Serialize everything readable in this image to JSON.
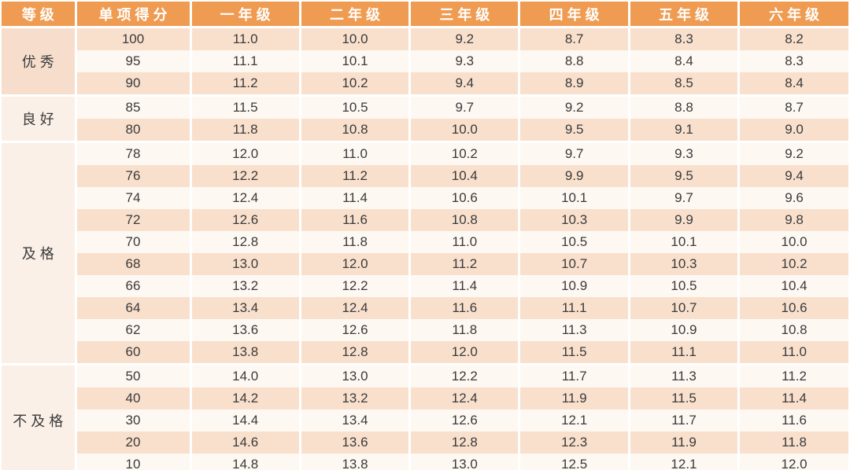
{
  "colors": {
    "header_bg": "#EF9B51",
    "header_text": "#FFFFFF",
    "row_peach": "#F9E0CD",
    "row_cream": "#FEF8F3",
    "group_excellent_bg": "#F7DECC",
    "group_other_bg": "#FBF0E8",
    "cell_text": "#3A3A3A",
    "grid_line": "#FFFFFF"
  },
  "chart_data": {
    "type": "table",
    "columns": [
      "等级",
      "单项得分",
      "一年级",
      "二年级",
      "三年级",
      "四年级",
      "五年级",
      "六年级"
    ],
    "groups": [
      {
        "label": "优秀",
        "rows": [
          {
            "score": "100",
            "values": [
              "11.0",
              "10.0",
              "9.2",
              "8.7",
              "8.3",
              "8.2"
            ]
          },
          {
            "score": "95",
            "values": [
              "11.1",
              "10.1",
              "9.3",
              "8.8",
              "8.4",
              "8.3"
            ]
          },
          {
            "score": "90",
            "values": [
              "11.2",
              "10.2",
              "9.4",
              "8.9",
              "8.5",
              "8.4"
            ]
          }
        ]
      },
      {
        "label": "良好",
        "rows": [
          {
            "score": "85",
            "values": [
              "11.5",
              "10.5",
              "9.7",
              "9.2",
              "8.8",
              "8.7"
            ]
          },
          {
            "score": "80",
            "values": [
              "11.8",
              "10.8",
              "10.0",
              "9.5",
              "9.1",
              "9.0"
            ]
          }
        ]
      },
      {
        "label": "及格",
        "rows": [
          {
            "score": "78",
            "values": [
              "12.0",
              "11.0",
              "10.2",
              "9.7",
              "9.3",
              "9.2"
            ]
          },
          {
            "score": "76",
            "values": [
              "12.2",
              "11.2",
              "10.4",
              "9.9",
              "9.5",
              "9.4"
            ]
          },
          {
            "score": "74",
            "values": [
              "12.4",
              "11.4",
              "10.6",
              "10.1",
              "9.7",
              "9.6"
            ]
          },
          {
            "score": "72",
            "values": [
              "12.6",
              "11.6",
              "10.8",
              "10.3",
              "9.9",
              "9.8"
            ]
          },
          {
            "score": "70",
            "values": [
              "12.8",
              "11.8",
              "11.0",
              "10.5",
              "10.1",
              "10.0"
            ]
          },
          {
            "score": "68",
            "values": [
              "13.0",
              "12.0",
              "11.2",
              "10.7",
              "10.3",
              "10.2"
            ]
          },
          {
            "score": "66",
            "values": [
              "13.2",
              "12.2",
              "11.4",
              "10.9",
              "10.5",
              "10.4"
            ]
          },
          {
            "score": "64",
            "values": [
              "13.4",
              "12.4",
              "11.6",
              "11.1",
              "10.7",
              "10.6"
            ]
          },
          {
            "score": "62",
            "values": [
              "13.6",
              "12.6",
              "11.8",
              "11.3",
              "10.9",
              "10.8"
            ]
          },
          {
            "score": "60",
            "values": [
              "13.8",
              "12.8",
              "12.0",
              "11.5",
              "11.1",
              "11.0"
            ]
          }
        ]
      },
      {
        "label": "不及格",
        "rows": [
          {
            "score": "50",
            "values": [
              "14.0",
              "13.0",
              "12.2",
              "11.7",
              "11.3",
              "11.2"
            ]
          },
          {
            "score": "40",
            "values": [
              "14.2",
              "13.2",
              "12.4",
              "11.9",
              "11.5",
              "11.4"
            ]
          },
          {
            "score": "30",
            "values": [
              "14.4",
              "13.4",
              "12.6",
              "12.1",
              "11.7",
              "11.6"
            ]
          },
          {
            "score": "20",
            "values": [
              "14.6",
              "13.6",
              "12.8",
              "12.3",
              "11.9",
              "11.8"
            ]
          },
          {
            "score": "10",
            "values": [
              "14.8",
              "13.8",
              "13.0",
              "12.5",
              "12.1",
              "12.0"
            ]
          }
        ]
      }
    ]
  }
}
